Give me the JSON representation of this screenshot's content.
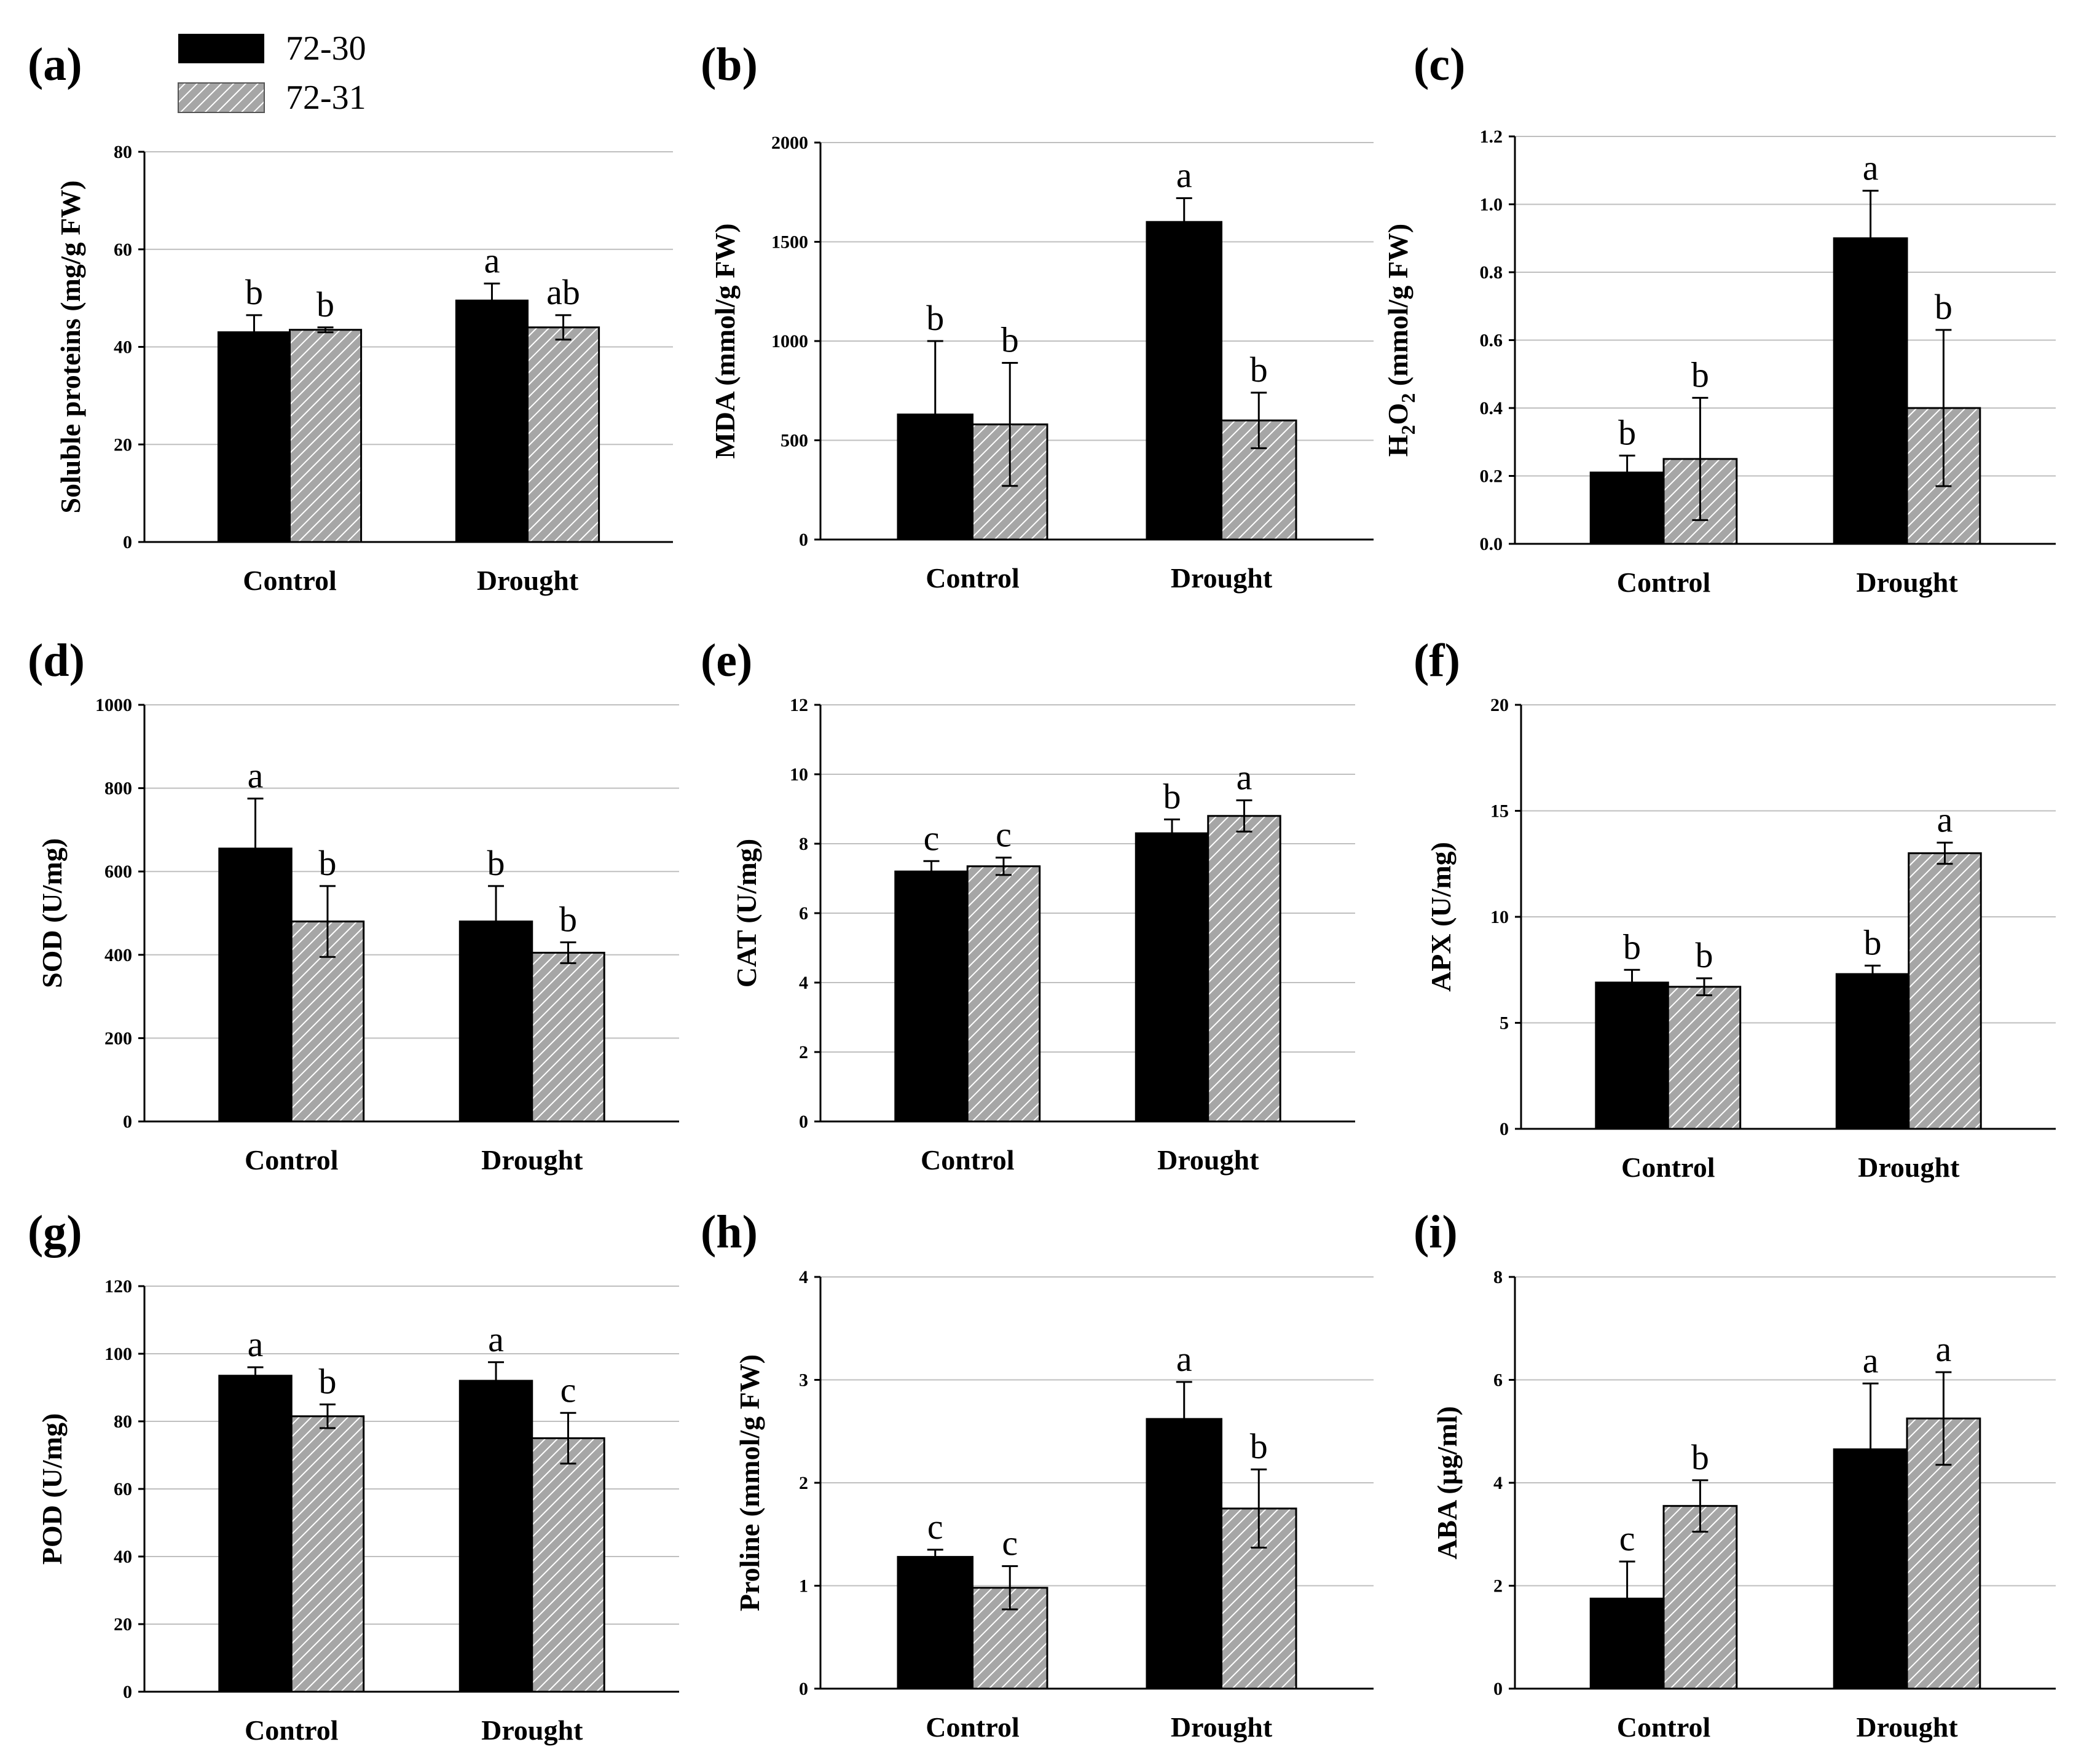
{
  "legend": {
    "entries": [
      {
        "name": "72-30",
        "fill": "solid",
        "color": "#000000"
      },
      {
        "name": "72-31",
        "fill": "hatch",
        "color": "#999999"
      }
    ]
  },
  "colors": {
    "series1": "#000000",
    "series2_bg": "#a6a6a6",
    "series2_line": "#ffffff",
    "grid": "#bfbfbf",
    "axis": "#000000"
  },
  "chart_data": [
    {
      "panel": "(a)",
      "type": "bar",
      "ylabel": "Soluble proteins (mg/g FW)",
      "ylim": [
        0,
        80
      ],
      "yticks": [
        "0",
        "20",
        "40",
        "60",
        "80"
      ],
      "categories": [
        "Control",
        "Drought"
      ],
      "series": [
        {
          "name": "72-30",
          "values": [
            43,
            49.5
          ],
          "errors": [
            3.5,
            3.5
          ],
          "letters": [
            "b",
            "a"
          ]
        },
        {
          "name": "72-31",
          "values": [
            43.5,
            44
          ],
          "errors": [
            0.5,
            2.5
          ],
          "letters": [
            "b",
            "ab"
          ]
        }
      ]
    },
    {
      "panel": "(b)",
      "type": "bar",
      "ylabel": "MDA (mmol/g FW)",
      "ylim": [
        0,
        2000
      ],
      "yticks": [
        "0",
        "500",
        "1000",
        "1500",
        "2000"
      ],
      "categories": [
        "Control",
        "Drought"
      ],
      "series": [
        {
          "name": "72-30",
          "values": [
            630,
            1600
          ],
          "errors": [
            370,
            120
          ],
          "letters": [
            "b",
            "a"
          ]
        },
        {
          "name": "72-31",
          "values": [
            580,
            600
          ],
          "errors": [
            310,
            140
          ],
          "letters": [
            "b",
            "b"
          ]
        }
      ]
    },
    {
      "panel": "(c)",
      "type": "bar",
      "ylabel": "H2O2 (mmol/g FW)",
      "ylim": [
        0,
        1.2
      ],
      "yticks": [
        "0.0",
        "0.2",
        "0.4",
        "0.6",
        "0.8",
        "1.0",
        "1.2"
      ],
      "categories": [
        "Control",
        "Drought"
      ],
      "series": [
        {
          "name": "72-30",
          "values": [
            0.21,
            0.9
          ],
          "errors": [
            0.05,
            0.14
          ],
          "letters": [
            "b",
            "a"
          ]
        },
        {
          "name": "72-31",
          "values": [
            0.25,
            0.4
          ],
          "errors": [
            0.18,
            0.23
          ],
          "letters": [
            "b",
            "b"
          ]
        }
      ]
    },
    {
      "panel": "(d)",
      "type": "bar",
      "ylabel": "SOD (U/mg)",
      "ylim": [
        0,
        1000
      ],
      "yticks": [
        "0",
        "200",
        "400",
        "600",
        "800",
        "1000"
      ],
      "categories": [
        "Control",
        "Drought"
      ],
      "series": [
        {
          "name": "72-30",
          "values": [
            655,
            480
          ],
          "errors": [
            120,
            85
          ],
          "letters": [
            "a",
            "b"
          ]
        },
        {
          "name": "72-31",
          "values": [
            480,
            405
          ],
          "errors": [
            85,
            25
          ],
          "letters": [
            "b",
            "b"
          ]
        }
      ]
    },
    {
      "panel": "(e)",
      "type": "bar",
      "ylabel": "CAT (U/mg)",
      "ylim": [
        0,
        12
      ],
      "yticks": [
        "0",
        "2",
        "4",
        "6",
        "8",
        "10",
        "12"
      ],
      "categories": [
        "Control",
        "Drought"
      ],
      "series": [
        {
          "name": "72-30",
          "values": [
            7.2,
            8.3
          ],
          "errors": [
            0.3,
            0.4
          ],
          "letters": [
            "c",
            "b"
          ]
        },
        {
          "name": "72-31",
          "values": [
            7.35,
            8.8
          ],
          "errors": [
            0.25,
            0.45
          ],
          "letters": [
            "c",
            "a"
          ]
        }
      ]
    },
    {
      "panel": "(f)",
      "type": "bar",
      "ylabel": "APX (U/mg)",
      "ylim": [
        0,
        20
      ],
      "yticks": [
        "0",
        "5",
        "10",
        "15",
        "20"
      ],
      "categories": [
        "Control",
        "Drought"
      ],
      "series": [
        {
          "name": "72-30",
          "values": [
            6.9,
            7.3
          ],
          "errors": [
            0.6,
            0.4
          ],
          "letters": [
            "b",
            "b"
          ]
        },
        {
          "name": "72-31",
          "values": [
            6.7,
            13.0
          ],
          "errors": [
            0.4,
            0.5
          ],
          "letters": [
            "b",
            "a"
          ]
        }
      ]
    },
    {
      "panel": "(g)",
      "type": "bar",
      "ylabel": "POD (U/mg)",
      "ylim": [
        0,
        120
      ],
      "yticks": [
        "0",
        "20",
        "40",
        "60",
        "80",
        "100",
        "120"
      ],
      "categories": [
        "Control",
        "Drought"
      ],
      "series": [
        {
          "name": "72-30",
          "values": [
            93.5,
            92
          ],
          "errors": [
            2.5,
            5.5
          ],
          "letters": [
            "a",
            "a"
          ]
        },
        {
          "name": "72-31",
          "values": [
            81.5,
            75
          ],
          "errors": [
            3.5,
            7.5
          ],
          "letters": [
            "b",
            "c"
          ]
        }
      ]
    },
    {
      "panel": "(h)",
      "type": "bar",
      "ylabel": "Proline (mmol/g FW)",
      "ylim": [
        0,
        4
      ],
      "yticks": [
        "0",
        "1",
        "2",
        "3",
        "4"
      ],
      "categories": [
        "Control",
        "Drought"
      ],
      "series": [
        {
          "name": "72-30",
          "values": [
            1.28,
            2.62
          ],
          "errors": [
            0.07,
            0.36
          ],
          "letters": [
            "c",
            "a"
          ]
        },
        {
          "name": "72-31",
          "values": [
            0.98,
            1.75
          ],
          "errors": [
            0.21,
            0.38
          ],
          "letters": [
            "c",
            "b"
          ]
        }
      ]
    },
    {
      "panel": "(i)",
      "type": "bar",
      "ylabel": "ABA (μg/ml)",
      "ylim": [
        0,
        8
      ],
      "yticks": [
        "0",
        "2",
        "4",
        "6",
        "8"
      ],
      "categories": [
        "Control",
        "Drought"
      ],
      "series": [
        {
          "name": "72-30",
          "values": [
            1.75,
            4.65
          ],
          "errors": [
            0.72,
            1.28
          ],
          "letters": [
            "c",
            "a"
          ]
        },
        {
          "name": "72-31",
          "values": [
            3.55,
            5.25
          ],
          "errors": [
            0.5,
            0.9
          ],
          "letters": [
            "b",
            "a"
          ]
        }
      ]
    }
  ]
}
